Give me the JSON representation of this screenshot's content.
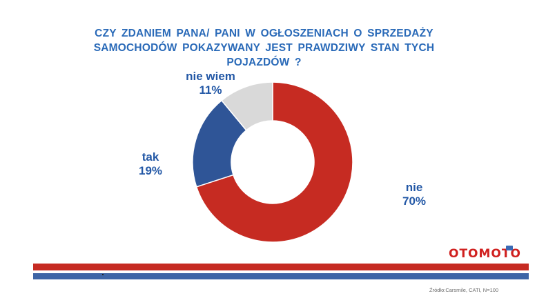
{
  "title_lines": [
    "CZY ZDANIEM PANA/ PANI W OGŁOSZENIACH O SPRZEDAŻY",
    "SAMOCHODÓW POKAZYWANY JEST PRAWDZIWY STAN TYCH",
    "POJAZDÓW ?"
  ],
  "chart_data": {
    "type": "pie",
    "donut": true,
    "title": "CZY ZDANIEM PANA/ PANI W OGŁOSZENIACH O SPRZEDAŻY SAMOCHODÓW POKAZYWANY JEST PRAWDZIWY STAN TYCH POJAZDÓW ?",
    "slices": [
      {
        "label": "nie",
        "value": 70,
        "value_label": "70%",
        "color": "#c62b22"
      },
      {
        "label": "tak",
        "value": 19,
        "value_label": "19%",
        "color": "#2f5597"
      },
      {
        "label": "nie wiem",
        "value": 11,
        "value_label": "11%",
        "color": "#d9d9d9"
      }
    ],
    "start_angle_deg": 0,
    "direction": "clockwise",
    "legend": "none"
  },
  "logo": {
    "text": "OTOMOTO",
    "badge_color": "#3a69b4"
  },
  "source": "Źródło:Carsmile, CATI, N=100",
  "colors": {
    "title": "#2a6ab8",
    "label": "#2358a6",
    "stripe_red": "#c62b22",
    "stripe_blue": "#3e65a6"
  }
}
